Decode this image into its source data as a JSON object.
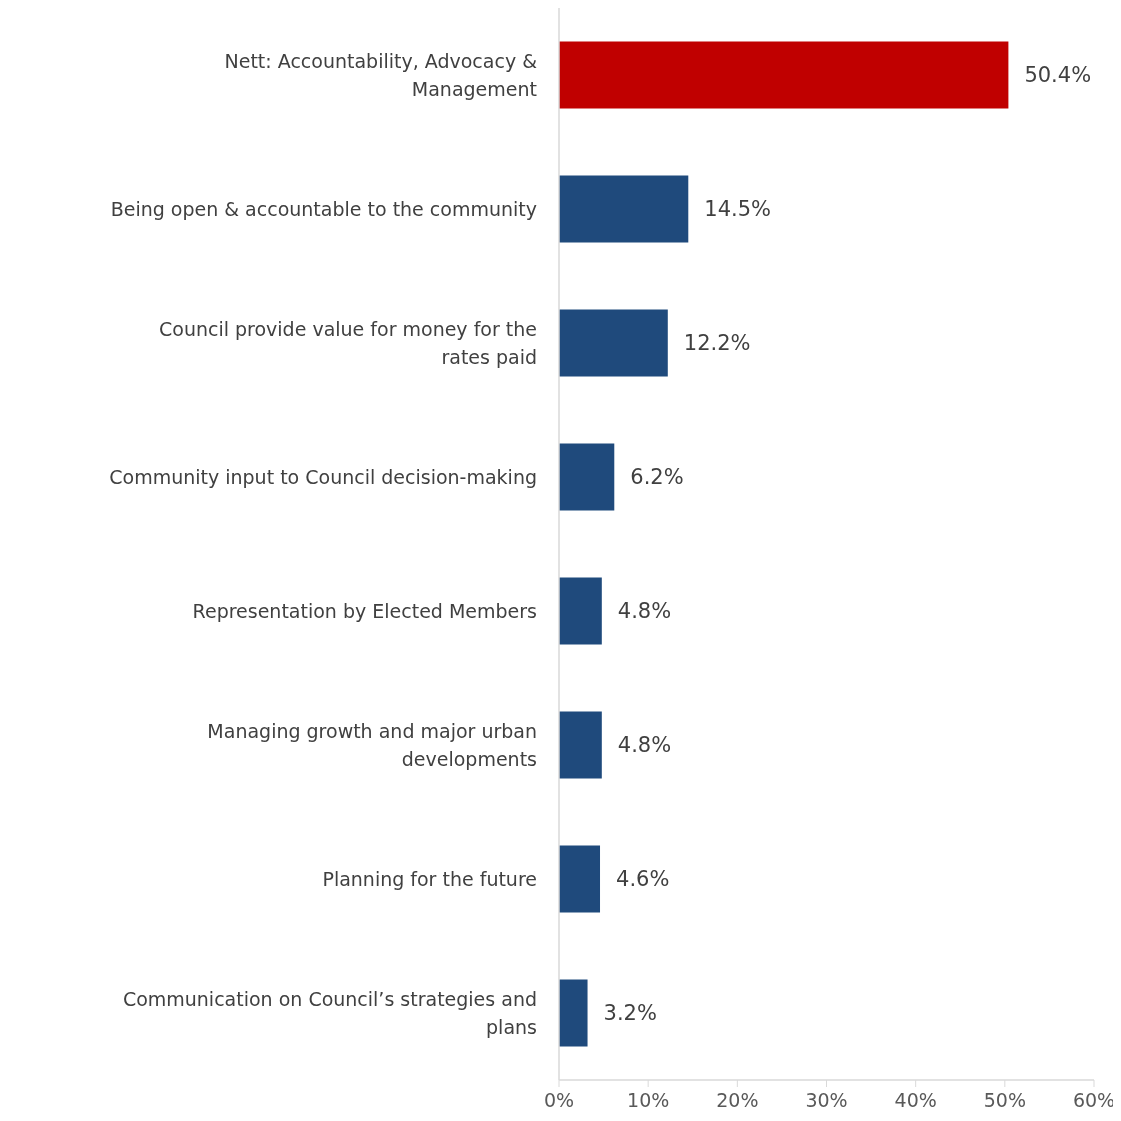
{
  "chart_data": {
    "type": "bar",
    "orientation": "horizontal",
    "categories": [
      "Nett: Accountability, Advocacy & Management",
      "Being open & accountable to the community",
      "Council provide value for money for the rates paid",
      "Community input to Council decision-making",
      "Representation by Elected Members",
      "Managing growth and major urban developments",
      "Planning for the future",
      "Communication on Council’s strategies and plans"
    ],
    "values": [
      50.4,
      14.5,
      12.2,
      6.2,
      4.8,
      4.8,
      4.6,
      3.2
    ],
    "colors": [
      "#c00000",
      "#1f4a7c",
      "#1f4a7c",
      "#1f4a7c",
      "#1f4a7c",
      "#1f4a7c",
      "#1f4a7c",
      "#1f4a7c"
    ],
    "value_labels": [
      "50.4%",
      "14.5%",
      "12.2%",
      "6.2%",
      "4.8%",
      "4.8%",
      "4.6%",
      "3.2%"
    ],
    "xlim": [
      0,
      60
    ],
    "xticks": [
      {
        "value": 0,
        "label": "0%"
      },
      {
        "value": 10,
        "label": "10%"
      },
      {
        "value": 20,
        "label": "20%"
      },
      {
        "value": 30,
        "label": "30%"
      },
      {
        "value": 40,
        "label": "40%"
      },
      {
        "value": 50,
        "label": "50%"
      },
      {
        "value": 60,
        "label": "60%"
      }
    ],
    "grid": false
  }
}
